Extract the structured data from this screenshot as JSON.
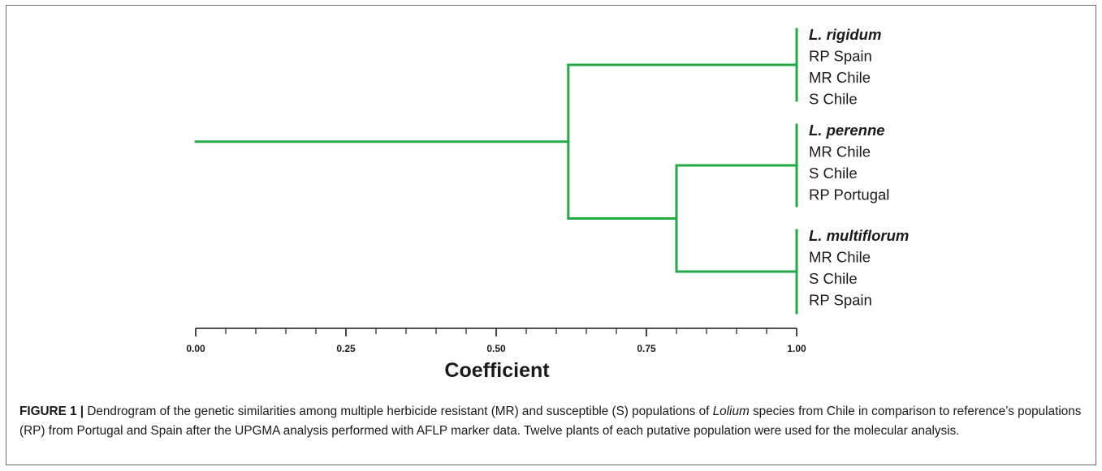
{
  "chart_data": {
    "type": "dendrogram",
    "method": "UPGMA",
    "axis": {
      "title": "Coefficient",
      "min": 0,
      "max": 1,
      "tick_labels": [
        "0.00",
        "0.25",
        "0.50",
        "0.75",
        "1.00"
      ]
    },
    "tree": {
      "height": 0.62,
      "children": [
        {
          "species": "L. rigidum",
          "populations": [
            "RP Spain",
            "MR Chile",
            "S Chile"
          ]
        },
        {
          "height": 0.8,
          "children": [
            {
              "species": "L. perenne",
              "populations": [
                "MR Chile",
                "S Chile",
                "RP Portugal"
              ]
            },
            {
              "species": "L. multiflorum",
              "populations": [
                "MR Chile",
                "S Chile",
                "RP Spain"
              ]
            }
          ]
        }
      ]
    },
    "line_color": "#22aa44"
  },
  "caption": {
    "label": "FIGURE 1 |",
    "text_1": " Dendrogram of the genetic similarities among multiple herbicide resistant (MR) and susceptible (S) populations of ",
    "genus": "Lolium",
    "text_2": " species from Chile in comparison to reference’s populations (RP) from Portugal and Spain after the UPGMA analysis performed with AFLP marker data. Twelve plants of each putative population were used for the molecular analysis."
  }
}
